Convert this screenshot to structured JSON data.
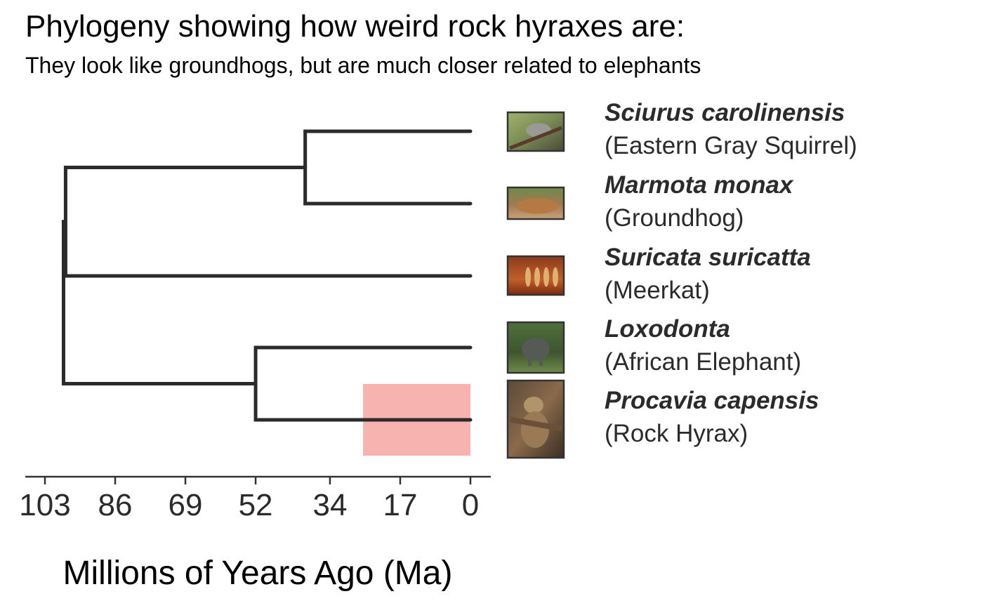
{
  "title": "Phylogeny showing how weird rock hyraxes are:",
  "subtitle": "They look like groundhogs, but are much closer related to elephants",
  "chart_data": {
    "type": "dendrogram",
    "xlabel": "Millions of Years Ago (Ma)",
    "ylabel": "",
    "xlim": [
      103,
      0
    ],
    "x_reversed": true,
    "x_ticks": [
      103,
      86,
      69,
      52,
      34,
      17,
      0
    ],
    "tips": [
      {
        "id": "squirrel",
        "scientific_name": "Sciurus carolinensis",
        "common_name": "(Eastern Gray Squirrel)",
        "image": "squirrel-photo"
      },
      {
        "id": "groundhog",
        "scientific_name": "Marmota monax",
        "common_name": "(Groundhog)",
        "image": "groundhog-photo"
      },
      {
        "id": "meerkat",
        "scientific_name": "Suricata suricatta",
        "common_name": "(Meerkat)",
        "image": "meerkat-photo"
      },
      {
        "id": "elephant",
        "scientific_name": "Loxodonta",
        "common_name": "(African Elephant)",
        "image": "elephant-photo"
      },
      {
        "id": "hyrax",
        "scientific_name": "Procavia capensis",
        "common_name": "(Rock Hyrax)",
        "image": "hyrax-photo"
      }
    ],
    "nodes": [
      {
        "id": "root",
        "age": 98.5,
        "children": [
          "laurasiatheria",
          "afrotheria"
        ]
      },
      {
        "id": "laurasiatheria",
        "age": 98,
        "children": [
          "rodents",
          "meerkat"
        ]
      },
      {
        "id": "rodents",
        "age": 40,
        "children": [
          "squirrel",
          "groundhog"
        ]
      },
      {
        "id": "afrotheria",
        "age": 52,
        "children": [
          "elephant",
          "hyrax"
        ]
      }
    ],
    "highlight": {
      "tip": "hyrax",
      "age_range": [
        26,
        0
      ],
      "color": "#f4a09c"
    },
    "line_color": "#2b2b2b",
    "grid": false,
    "legend": "none"
  }
}
